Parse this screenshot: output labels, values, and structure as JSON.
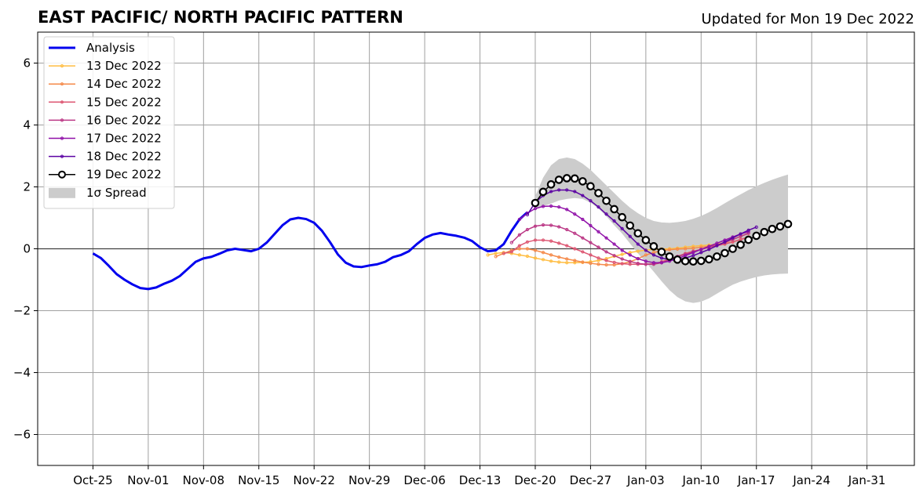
{
  "chart_data": {
    "type": "line",
    "title": "EAST PACIFIC/ NORTH PACIFIC PATTERN",
    "subtitle": "Updated for Mon 19 Dec 2022",
    "xlabel": "",
    "ylabel": "",
    "x_range": [
      "2022-10-18",
      "2023-02-06"
    ],
    "ylim": [
      -7,
      7
    ],
    "yticks": [
      -6,
      -4,
      -2,
      0,
      2,
      4,
      6
    ],
    "ytick_labels": [
      "−6",
      "−4",
      "−2",
      "0",
      "2",
      "4",
      "6"
    ],
    "xticks": [
      "2022-10-25",
      "2022-11-01",
      "2022-11-08",
      "2022-11-15",
      "2022-11-22",
      "2022-11-29",
      "2022-12-06",
      "2022-12-13",
      "2022-12-20",
      "2022-12-27",
      "2023-01-03",
      "2023-01-10",
      "2023-01-17",
      "2023-01-24",
      "2023-01-31"
    ],
    "xtick_labels": [
      "Oct-25",
      "Nov-01",
      "Nov-08",
      "Nov-15",
      "Nov-22",
      "Nov-29",
      "Dec-06",
      "Dec-13",
      "Dec-20",
      "Dec-27",
      "Jan-03",
      "Jan-10",
      "Jan-17",
      "Jan-24",
      "Jan-31"
    ],
    "grid": true,
    "legend_position": "top-left",
    "analysis": {
      "name": "Analysis",
      "color": "#0000ee",
      "start": "2022-10-25",
      "values": [
        -0.15,
        -0.3,
        -0.55,
        -0.82,
        -1.0,
        -1.15,
        -1.27,
        -1.3,
        -1.25,
        -1.13,
        -1.03,
        -0.88,
        -0.65,
        -0.42,
        -0.31,
        -0.26,
        -0.16,
        -0.05,
        0.0,
        -0.04,
        -0.08,
        0.0,
        0.2,
        0.48,
        0.76,
        0.95,
        1.0,
        0.96,
        0.84,
        0.58,
        0.22,
        -0.18,
        -0.45,
        -0.57,
        -0.59,
        -0.54,
        -0.5,
        -0.42,
        -0.27,
        -0.2,
        -0.08,
        0.15,
        0.35,
        0.46,
        0.51,
        0.46,
        0.42,
        0.36,
        0.25,
        0.05,
        -0.08,
        -0.05,
        0.15,
        0.58,
        0.95,
        1.18
      ]
    },
    "forecasts": [
      {
        "name": "13 Dec 2022",
        "color": "#ffbd42",
        "start": "2022-12-14",
        "values": [
          -0.2,
          -0.15,
          -0.12,
          -0.15,
          -0.2,
          -0.24,
          -0.3,
          -0.35,
          -0.4,
          -0.43,
          -0.45,
          -0.45,
          -0.44,
          -0.42,
          -0.38,
          -0.32,
          -0.24,
          -0.18,
          -0.12,
          -0.08,
          -0.04,
          -0.02,
          -0.01,
          0.0,
          0.02,
          0.05,
          0.08,
          0.1,
          0.12,
          0.15,
          0.2,
          0.3,
          0.4,
          0.5
        ]
      },
      {
        "name": "14 Dec 2022",
        "color": "#f58a4a",
        "start": "2022-12-15",
        "values": [
          -0.25,
          -0.15,
          -0.05,
          0.0,
          0.0,
          -0.05,
          -0.12,
          -0.2,
          -0.27,
          -0.33,
          -0.38,
          -0.43,
          -0.47,
          -0.5,
          -0.52,
          -0.52,
          -0.48,
          -0.42,
          -0.32,
          -0.2,
          -0.12,
          -0.06,
          -0.03,
          -0.01,
          0.0,
          0.02,
          0.05,
          0.08,
          0.12,
          0.17,
          0.22,
          0.3,
          0.38
        ]
      },
      {
        "name": "15 Dec 2022",
        "color": "#dd5672",
        "start": "2022-12-16",
        "values": [
          -0.15,
          -0.1,
          0.1,
          0.22,
          0.28,
          0.28,
          0.25,
          0.18,
          0.1,
          0.0,
          -0.1,
          -0.2,
          -0.3,
          -0.38,
          -0.44,
          -0.48,
          -0.5,
          -0.5,
          -0.5,
          -0.48,
          -0.42,
          -0.33,
          -0.25,
          -0.15,
          -0.08,
          -0.02,
          0.05,
          0.1,
          0.15,
          0.22,
          0.3,
          0.38
        ]
      },
      {
        "name": "16 Dec 2022",
        "color": "#bb3785",
        "start": "2022-12-17",
        "values": [
          0.2,
          0.45,
          0.62,
          0.73,
          0.77,
          0.76,
          0.71,
          0.62,
          0.5,
          0.35,
          0.2,
          0.05,
          -0.1,
          -0.22,
          -0.33,
          -0.41,
          -0.47,
          -0.5,
          -0.5,
          -0.45,
          -0.35,
          -0.25,
          -0.18,
          -0.1,
          -0.02,
          0.05,
          0.12,
          0.2,
          0.3,
          0.4,
          0.5
        ]
      },
      {
        "name": "17 Dec 2022",
        "color": "#9010a8",
        "start": "2022-12-18",
        "values": [
          0.95,
          1.15,
          1.3,
          1.37,
          1.38,
          1.35,
          1.27,
          1.12,
          0.95,
          0.75,
          0.55,
          0.35,
          0.15,
          -0.05,
          -0.2,
          -0.32,
          -0.4,
          -0.45,
          -0.45,
          -0.4,
          -0.32,
          -0.22,
          -0.12,
          -0.02,
          0.08,
          0.18,
          0.28,
          0.38,
          0.48,
          0.55
        ]
      },
      {
        "name": "18 Dec 2022",
        "color": "#5b02a3",
        "start": "2022-12-19",
        "values": [
          1.1,
          1.5,
          1.72,
          1.85,
          1.9,
          1.9,
          1.85,
          1.72,
          1.55,
          1.35,
          1.12,
          0.9,
          0.65,
          0.4,
          0.15,
          -0.05,
          -0.2,
          -0.3,
          -0.35,
          -0.35,
          -0.3,
          -0.22,
          -0.12,
          -0.02,
          0.1,
          0.22,
          0.35,
          0.48,
          0.6,
          0.7
        ]
      }
    ],
    "latest": {
      "name": "19 Dec 2022",
      "color": "#000000",
      "start": "2022-12-20",
      "values": [
        1.48,
        1.84,
        2.08,
        2.23,
        2.28,
        2.27,
        2.18,
        2.02,
        1.8,
        1.55,
        1.28,
        1.02,
        0.75,
        0.5,
        0.28,
        0.08,
        -0.1,
        -0.25,
        -0.35,
        -0.4,
        -0.41,
        -0.39,
        -0.34,
        -0.25,
        -0.14,
        0.0,
        0.13,
        0.29,
        0.42,
        0.54,
        0.64,
        0.72,
        0.8
      ]
    },
    "spread": {
      "name": "1σ Spread",
      "color": "#cccccc",
      "start": "2022-12-20",
      "upper": [
        1.7,
        2.3,
        2.7,
        2.9,
        2.95,
        2.9,
        2.75,
        2.55,
        2.3,
        2.05,
        1.8,
        1.55,
        1.33,
        1.15,
        1.0,
        0.9,
        0.85,
        0.84,
        0.86,
        0.9,
        0.97,
        1.06,
        1.18,
        1.32,
        1.47,
        1.62,
        1.76,
        1.9,
        2.02,
        2.13,
        2.23,
        2.32,
        2.4
      ],
      "lower": [
        1.26,
        1.38,
        1.46,
        1.56,
        1.61,
        1.64,
        1.61,
        1.49,
        1.3,
        1.05,
        0.76,
        0.49,
        0.17,
        -0.15,
        -0.44,
        -0.74,
        -1.05,
        -1.34,
        -1.56,
        -1.7,
        -1.75,
        -1.71,
        -1.6,
        -1.45,
        -1.3,
        -1.16,
        -1.06,
        -0.98,
        -0.91,
        -0.86,
        -0.83,
        -0.81,
        -0.8
      ]
    }
  }
}
